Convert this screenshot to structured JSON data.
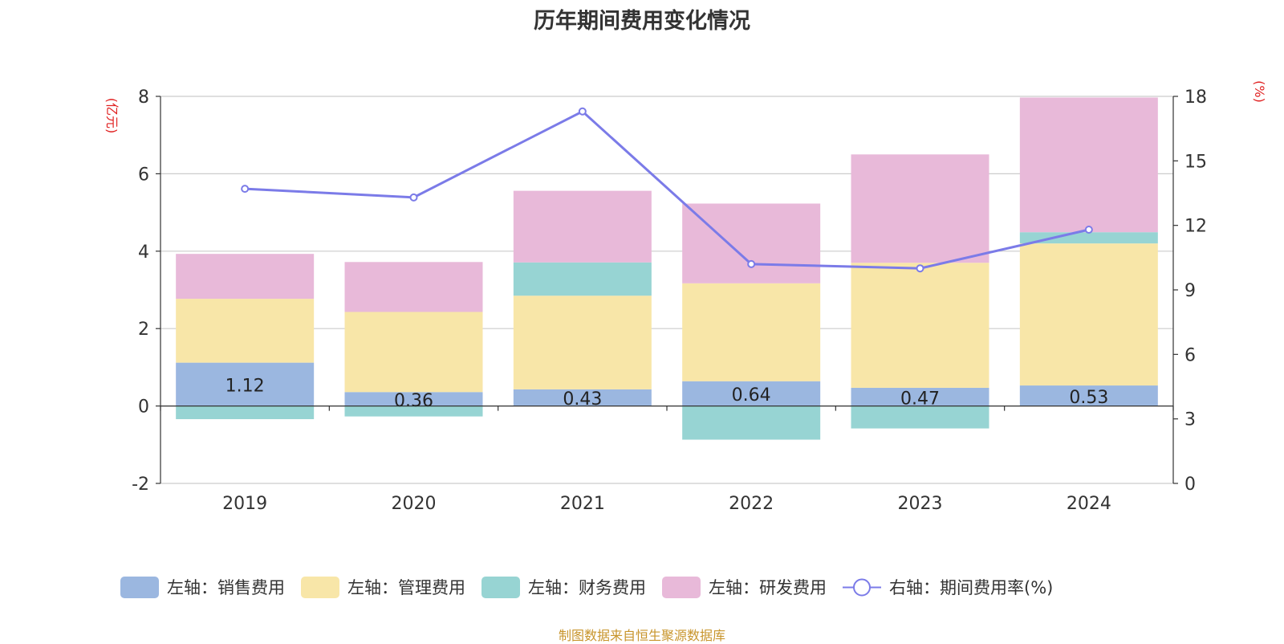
{
  "chart_data": {
    "type": "bar",
    "title": "历年期间费用变化情况",
    "categories": [
      "2019",
      "2020",
      "2021",
      "2022",
      "2023",
      "2024"
    ],
    "y_left": {
      "label": "(亿元)",
      "ticks": [
        "-2",
        "0",
        "2",
        "4",
        "6",
        "8"
      ],
      "ylim": [
        -2,
        8
      ]
    },
    "y_right": {
      "label": "(%)",
      "ticks": [
        "0",
        "3",
        "6",
        "9",
        "12",
        "15",
        "18"
      ],
      "ylim": [
        0,
        18
      ]
    },
    "series": [
      {
        "name": "左轴：销售费用",
        "axis": "left",
        "color": "#9bb7e0",
        "values": [
          1.12,
          0.36,
          0.43,
          0.64,
          0.47,
          0.53
        ],
        "data_labels": [
          "1.12",
          "0.36",
          "0.43",
          "0.64",
          "0.47",
          "0.53"
        ]
      },
      {
        "name": "左轴：管理费用",
        "axis": "left",
        "color": "#f8e6a8",
        "values": [
          1.65,
          2.07,
          2.42,
          2.53,
          3.23,
          3.67
        ]
      },
      {
        "name": "左轴：财务费用",
        "axis": "left",
        "color": "#97d4d3",
        "values": [
          -0.34,
          -0.27,
          0.86,
          -0.87,
          -0.58,
          0.29
        ]
      },
      {
        "name": "左轴：研发费用",
        "axis": "left",
        "color": "#e8b9d9",
        "values": [
          1.16,
          1.29,
          1.85,
          2.06,
          2.8,
          3.48
        ]
      },
      {
        "name": "右轴：期间费用率(%)",
        "axis": "right",
        "type": "line",
        "color": "#7b7be8",
        "values": [
          13.7,
          13.3,
          17.3,
          10.2,
          10.0,
          11.8
        ]
      }
    ],
    "grid": true,
    "legend_position": "bottom"
  },
  "source_text": "制图数据来自恒生聚源数据库"
}
